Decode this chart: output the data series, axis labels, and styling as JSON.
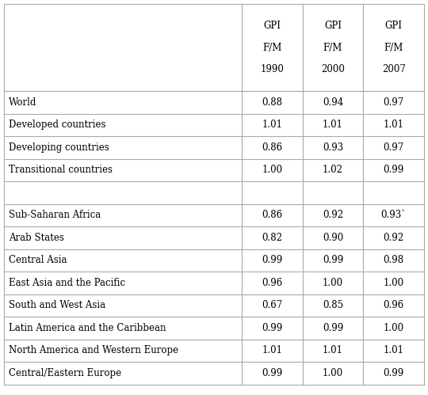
{
  "col_headers": [
    [
      "GPI",
      "F/M",
      "1990"
    ],
    [
      "GPI",
      "F/M",
      "2000"
    ],
    [
      "GPI",
      "F/M",
      "2007"
    ]
  ],
  "rows": [
    {
      "label": "World",
      "vals": [
        "0.88",
        "0.94",
        "0.97"
      ]
    },
    {
      "label": "Developed countries",
      "vals": [
        "1.01",
        "1.01",
        "1.01"
      ]
    },
    {
      "label": "Developing countries",
      "vals": [
        "0.86",
        "0.93",
        "0.97"
      ]
    },
    {
      "label": "Transitional countries",
      "vals": [
        "1.00",
        "1.02",
        "0.99"
      ]
    },
    {
      "label": "",
      "vals": [
        "",
        "",
        ""
      ]
    },
    {
      "label": "Sub-Saharan Africa",
      "vals": [
        "0.86",
        "0.92",
        "0.93`"
      ]
    },
    {
      "label": "Arab States",
      "vals": [
        "0.82",
        "0.90",
        "0.92"
      ]
    },
    {
      "label": "Central Asia",
      "vals": [
        "0.99",
        "0.99",
        "0.98"
      ]
    },
    {
      "label": "East Asia and the Pacific",
      "vals": [
        "0.96",
        "1.00",
        "1.00"
      ]
    },
    {
      "label": "South and West Asia",
      "vals": [
        "0.67",
        "0.85",
        "0.96"
      ]
    },
    {
      "label": "Latin America and the Caribbean",
      "vals": [
        "0.99",
        "0.99",
        "1.00"
      ]
    },
    {
      "label": "North America and Western Europe",
      "vals": [
        "1.01",
        "1.01",
        "1.01"
      ]
    },
    {
      "label": "Central/Eastern Europe",
      "vals": [
        "0.99",
        "1.00",
        "0.99"
      ]
    }
  ],
  "font_size": 8.5,
  "header_font_size": 8.5,
  "background_color": "#ffffff",
  "line_color": "#aaaaaa",
  "text_color": "#000000",
  "figsize": [
    5.4,
    4.99
  ],
  "dpi": 100
}
